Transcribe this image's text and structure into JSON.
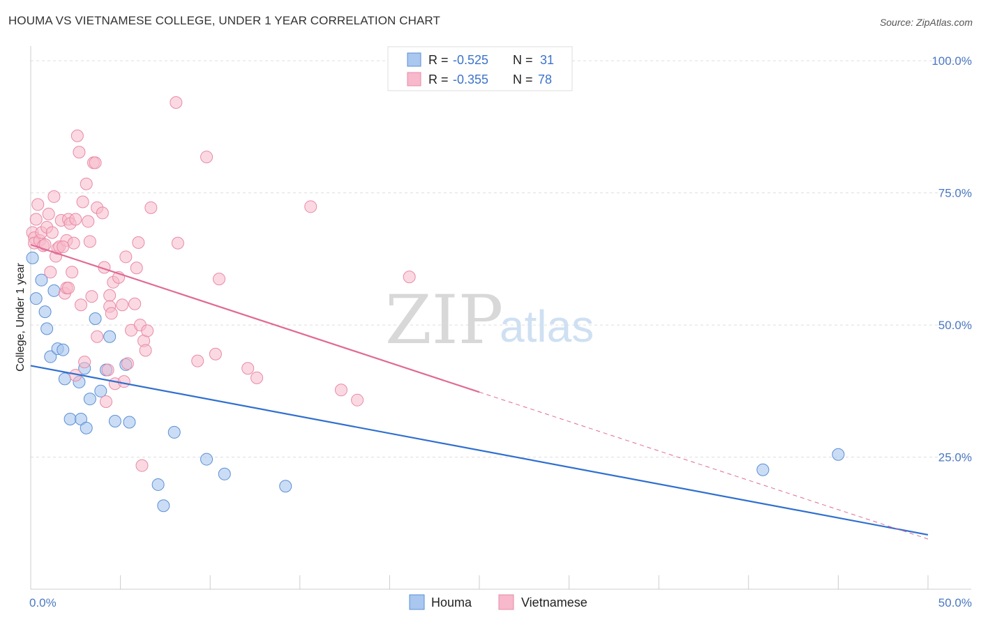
{
  "header": {
    "title": "HOUMA VS VIETNAMESE COLLEGE, UNDER 1 YEAR CORRELATION CHART",
    "source": "Source: ZipAtlas.com"
  },
  "watermark": {
    "zip": "ZIP",
    "atlas": "atlas"
  },
  "colors": {
    "houma_fill": "#a9c7ef",
    "houma_stroke": "#5a8fd6",
    "houma_line": "#2f6fcf",
    "viet_fill": "#f7b9cb",
    "viet_stroke": "#e88aa6",
    "viet_line": "#e06a94",
    "grid": "#dddddd",
    "axis_text": "#4a78c2"
  },
  "legend": {
    "rows": [
      {
        "r_label": "R =",
        "r_value": "-0.525",
        "n_label": "N =",
        "n_value": "31"
      },
      {
        "r_label": "R =",
        "r_value": "-0.355",
        "n_label": "N =",
        "n_value": "78"
      }
    ],
    "bottom": [
      "Houma",
      "Vietnamese"
    ]
  },
  "chart_data": {
    "type": "scatter",
    "title": "HOUMA VS VIETNAMESE COLLEGE, UNDER 1 YEAR CORRELATION CHART",
    "xlabel": "",
    "ylabel": "College, Under 1 year",
    "xlim": [
      0,
      50
    ],
    "ylim": [
      0,
      102
    ],
    "x_tick_labels": [
      "0.0%",
      "50.0%"
    ],
    "y_ticks": [
      25,
      50,
      75,
      100
    ],
    "y_tick_labels": [
      "25.0%",
      "50.0%",
      "75.0%",
      "100.0%"
    ],
    "grid": true,
    "legend": "top-center",
    "series": [
      {
        "name": "Houma",
        "r": -0.525,
        "n": 31,
        "points": [
          [
            0.1,
            62.7
          ],
          [
            0.3,
            55.0
          ],
          [
            0.6,
            58.5
          ],
          [
            0.8,
            52.5
          ],
          [
            0.9,
            49.3
          ],
          [
            1.1,
            44.0
          ],
          [
            1.3,
            56.5
          ],
          [
            1.5,
            45.5
          ],
          [
            1.8,
            45.3
          ],
          [
            1.9,
            39.8
          ],
          [
            2.2,
            32.2
          ],
          [
            2.7,
            39.2
          ],
          [
            2.8,
            32.2
          ],
          [
            3.1,
            30.5
          ],
          [
            3.0,
            41.8
          ],
          [
            3.3,
            36.0
          ],
          [
            3.6,
            51.2
          ],
          [
            3.9,
            37.5
          ],
          [
            4.2,
            41.5
          ],
          [
            4.4,
            47.8
          ],
          [
            4.7,
            31.8
          ],
          [
            5.3,
            42.5
          ],
          [
            5.5,
            31.6
          ],
          [
            7.1,
            19.8
          ],
          [
            7.4,
            15.8
          ],
          [
            8.0,
            29.7
          ],
          [
            9.8,
            24.6
          ],
          [
            10.8,
            21.8
          ],
          [
            14.2,
            19.5
          ],
          [
            40.8,
            22.6
          ],
          [
            45.0,
            25.5
          ]
        ],
        "trend": {
          "x": [
            0,
            50
          ],
          "y": [
            42.3,
            10.3
          ]
        }
      },
      {
        "name": "Vietnamese",
        "r": -0.355,
        "n": 78,
        "points": [
          [
            0.1,
            67.5
          ],
          [
            0.2,
            66.5
          ],
          [
            0.2,
            65.5
          ],
          [
            0.3,
            70.0
          ],
          [
            0.4,
            72.8
          ],
          [
            0.5,
            66.0
          ],
          [
            0.6,
            67.5
          ],
          [
            0.7,
            65.0
          ],
          [
            0.9,
            68.5
          ],
          [
            1.0,
            71.0
          ],
          [
            1.1,
            60.0
          ],
          [
            1.2,
            67.5
          ],
          [
            1.3,
            74.3
          ],
          [
            1.4,
            63.0
          ],
          [
            1.5,
            64.5
          ],
          [
            1.6,
            64.8
          ],
          [
            1.7,
            69.8
          ],
          [
            1.9,
            56.0
          ],
          [
            2.0,
            66.0
          ],
          [
            2.0,
            57.0
          ],
          [
            2.1,
            70.0
          ],
          [
            2.2,
            69.2
          ],
          [
            2.3,
            60.0
          ],
          [
            2.4,
            65.5
          ],
          [
            2.5,
            70.0
          ],
          [
            2.6,
            85.8
          ],
          [
            2.7,
            82.7
          ],
          [
            2.8,
            53.8
          ],
          [
            2.9,
            73.3
          ],
          [
            3.0,
            43.0
          ],
          [
            3.1,
            76.7
          ],
          [
            3.2,
            69.6
          ],
          [
            3.3,
            65.8
          ],
          [
            3.4,
            55.4
          ],
          [
            3.5,
            80.7
          ],
          [
            3.6,
            80.7
          ],
          [
            3.7,
            72.2
          ],
          [
            4.0,
            71.2
          ],
          [
            4.1,
            60.9
          ],
          [
            4.3,
            41.5
          ],
          [
            4.4,
            55.6
          ],
          [
            4.4,
            53.5
          ],
          [
            4.5,
            52.2
          ],
          [
            4.6,
            58.1
          ],
          [
            4.7,
            38.9
          ],
          [
            4.9,
            59.0
          ],
          [
            5.1,
            53.8
          ],
          [
            5.2,
            39.3
          ],
          [
            5.3,
            62.9
          ],
          [
            5.4,
            42.7
          ],
          [
            5.6,
            49.0
          ],
          [
            5.8,
            54.0
          ],
          [
            5.9,
            60.8
          ],
          [
            6.0,
            65.6
          ],
          [
            6.1,
            50.0
          ],
          [
            6.2,
            23.4
          ],
          [
            6.3,
            47.0
          ],
          [
            6.4,
            45.2
          ],
          [
            6.5,
            48.9
          ],
          [
            6.7,
            72.2
          ],
          [
            8.1,
            92.1
          ],
          [
            8.2,
            65.5
          ],
          [
            9.3,
            43.2
          ],
          [
            9.8,
            81.8
          ],
          [
            10.3,
            44.5
          ],
          [
            10.5,
            58.7
          ],
          [
            12.1,
            41.8
          ],
          [
            12.6,
            40.0
          ],
          [
            15.6,
            72.4
          ],
          [
            17.3,
            37.7
          ],
          [
            18.2,
            35.8
          ],
          [
            21.1,
            59.1
          ],
          [
            1.8,
            64.8
          ],
          [
            2.1,
            57.0
          ],
          [
            0.8,
            65.2
          ],
          [
            4.2,
            35.5
          ],
          [
            3.7,
            47.8
          ],
          [
            2.5,
            40.5
          ]
        ],
        "trend": {
          "x": [
            0,
            25
          ],
          "y": [
            65.2,
            37.3
          ]
        },
        "trend_extension": {
          "x": [
            25,
            50
          ],
          "y": [
            37.3,
            9.5
          ]
        }
      }
    ]
  }
}
